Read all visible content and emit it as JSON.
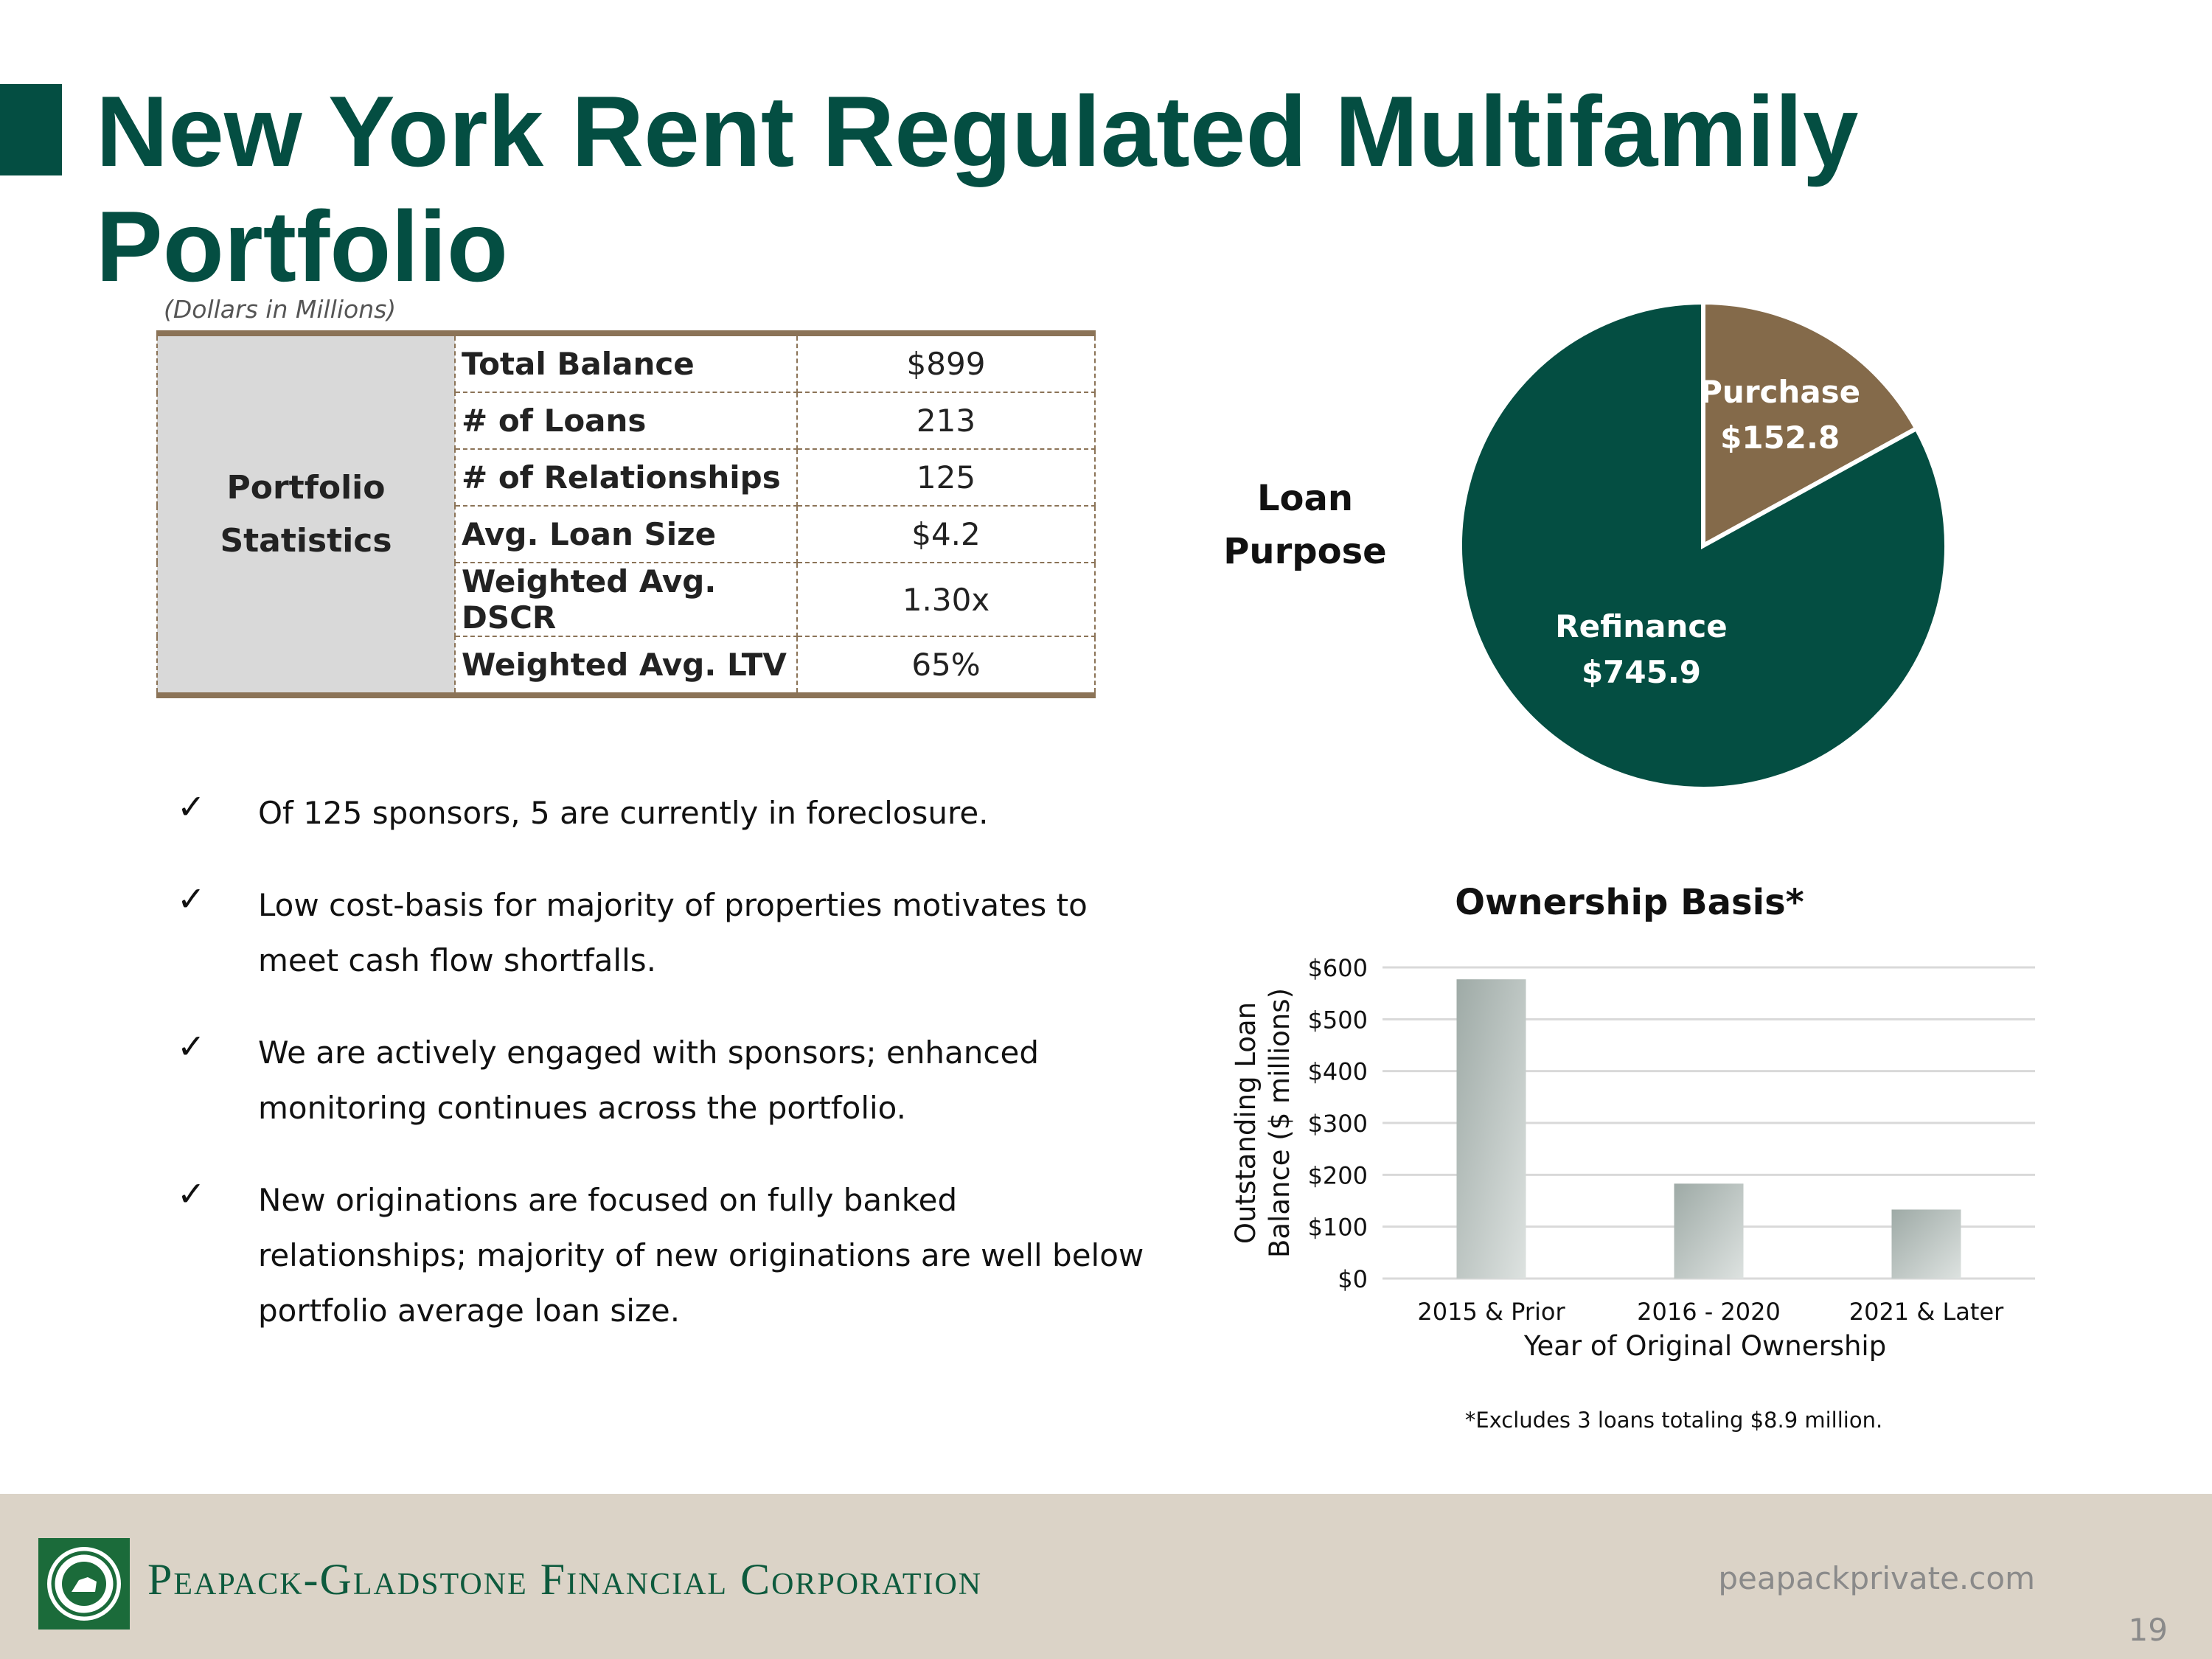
{
  "title": {
    "line1": "New York Rent Regulated Multifamily",
    "line2": "Portfolio"
  },
  "stats": {
    "units_note": "(Dollars in Millions)",
    "group_line1": "Portfolio",
    "group_line2": "Statistics",
    "rows": [
      {
        "label": "Total Balance",
        "value": "$899"
      },
      {
        "label": "# of Loans",
        "value": "213"
      },
      {
        "label": "# of Relationships",
        "value": "125"
      },
      {
        "label": "Avg. Loan Size",
        "value": "$4.2"
      },
      {
        "label": "Weighted Avg. DSCR",
        "value": "1.30x"
      },
      {
        "label": "Weighted Avg. LTV",
        "value": "65%"
      }
    ]
  },
  "bullets": [
    "Of 125 sponsors, 5 are currently in foreclosure.",
    "Low cost-basis for majority of properties motivates to meet cash flow shortfalls.",
    "We are actively engaged with sponsors; enhanced monitoring continues across the portfolio.",
    "New originations are focused on fully banked relationships; majority of new originations are well below portfolio average loan size."
  ],
  "check_glyph": "✓",
  "pie_title": {
    "line1": "Loan",
    "line2": "Purpose"
  },
  "bar_footnote": "*Excludes 3 loans totaling $8.9 million.",
  "footer": {
    "company": "Peapack-Gladstone Financial Corporation",
    "website": "peapackprivate.com",
    "page": "19"
  },
  "colors": {
    "brand_green": "#044e42",
    "purchase_brown": "#846a4a",
    "footer_bg": "#dbd3c7",
    "table_border": "#8b7357"
  },
  "chart_data": [
    {
      "type": "pie",
      "title": "Loan Purpose",
      "slices": [
        {
          "name": "Purchase",
          "value": 152.8,
          "label": "$152.8",
          "color": "#846a4a"
        },
        {
          "name": "Refinance",
          "value": 745.9,
          "label": "$745.9",
          "color": "#044e42"
        }
      ]
    },
    {
      "type": "bar",
      "title": "Ownership Basis*",
      "categories": [
        "2015 & Prior",
        "2016 - 2020",
        "2021 & Later"
      ],
      "values": [
        577,
        183,
        133
      ],
      "xlabel": "Year of Original Ownership",
      "ylabel_line1": "Outstanding Loan",
      "ylabel_line2": "Balance ($ millions)",
      "ylim": [
        0,
        600
      ],
      "yticks": [
        "$0",
        "$100",
        "$200",
        "$300",
        "$400",
        "$500",
        "$600"
      ],
      "grid": true
    }
  ]
}
